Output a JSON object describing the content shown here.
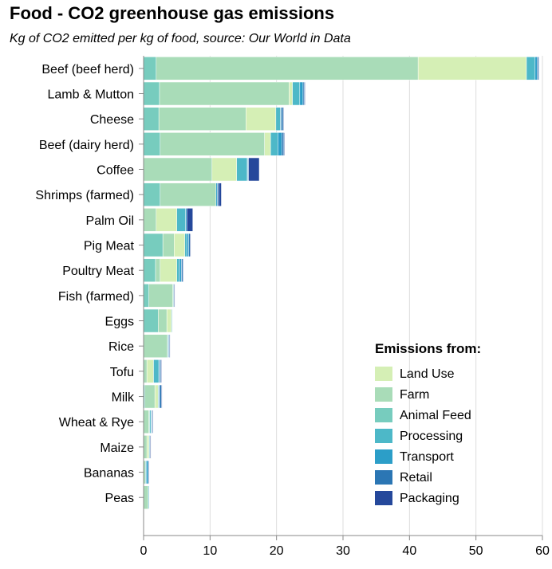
{
  "chart_data": {
    "type": "bar",
    "orientation": "horizontal",
    "stacked": true,
    "title": "Food - CO2 greenhouse gas emissions",
    "subtitle": "Kg of CO2 emitted per kg of food, source: Our World in Data",
    "xlabel": "",
    "ylabel": "",
    "xlim": [
      0,
      60
    ],
    "x_ticks": [
      0,
      10,
      20,
      30,
      40,
      50,
      60
    ],
    "grid": true,
    "legend_title": "Emissions from:",
    "legend_position": "bottom-right",
    "categories": [
      "Beef (beef herd)",
      "Lamb & Mutton",
      "Cheese",
      "Beef (dairy herd)",
      "Coffee",
      "Shrimps (farmed)",
      "Palm Oil",
      "Pig Meat",
      "Poultry Meat",
      "Fish (farmed)",
      "Eggs",
      "Rice",
      "Tofu",
      "Milk",
      "Wheat & Rye",
      "Maize",
      "Bananas",
      "Peas"
    ],
    "stack_order": [
      "Animal Feed",
      "Farm",
      "Land Use",
      "Processing",
      "Transport",
      "Retail",
      "Packaging"
    ],
    "series": [
      {
        "name": "Land Use",
        "color": "#d5efb5",
        "values": [
          16.3,
          0.5,
          4.5,
          0.9,
          3.7,
          0.0,
          3.1,
          1.6,
          2.5,
          0.1,
          0.7,
          0.0,
          1.0,
          0.5,
          0.1,
          0.3,
          0.0,
          0.0
        ]
      },
      {
        "name": "Farm",
        "color": "#a9dcb8",
        "values": [
          39.4,
          19.5,
          13.1,
          15.7,
          10.3,
          8.4,
          1.9,
          1.7,
          0.7,
          3.6,
          1.3,
          3.6,
          0.5,
          1.5,
          0.8,
          0.5,
          0.3,
          0.7
        ]
      },
      {
        "name": "Animal Feed",
        "color": "#77ccbe",
        "values": [
          1.9,
          2.4,
          2.3,
          2.5,
          0.0,
          2.5,
          0.0,
          2.9,
          1.8,
          0.8,
          2.2,
          0.0,
          0.0,
          0.2,
          0.0,
          0.0,
          0.0,
          0.0
        ]
      },
      {
        "name": "Processing",
        "color": "#4db8c8",
        "values": [
          1.3,
          1.1,
          0.7,
          1.1,
          1.6,
          0.0,
          1.3,
          0.3,
          0.4,
          0.0,
          0.0,
          0.1,
          0.8,
          0.1,
          0.2,
          0.1,
          0.1,
          0.0
        ]
      },
      {
        "name": "Transport",
        "color": "#2c9ec8",
        "values": [
          0.3,
          0.5,
          0.1,
          0.6,
          0.1,
          0.2,
          0.2,
          0.3,
          0.3,
          0.1,
          0.1,
          0.1,
          0.1,
          0.1,
          0.1,
          0.1,
          0.3,
          0.1
        ]
      },
      {
        "name": "Retail",
        "color": "#2b76b4",
        "values": [
          0.2,
          0.2,
          0.3,
          0.3,
          0.1,
          0.2,
          0.0,
          0.2,
          0.2,
          0.0,
          0.0,
          0.1,
          0.2,
          0.3,
          0.1,
          0.0,
          0.0,
          0.0
        ]
      },
      {
        "name": "Packaging",
        "color": "#25489b",
        "values": [
          0.1,
          0.1,
          0.1,
          0.1,
          1.6,
          0.4,
          0.9,
          0.1,
          0.1,
          0.1,
          0.0,
          0.1,
          0.1,
          0.1,
          0.1,
          0.1,
          0.1,
          0.0
        ]
      }
    ]
  }
}
